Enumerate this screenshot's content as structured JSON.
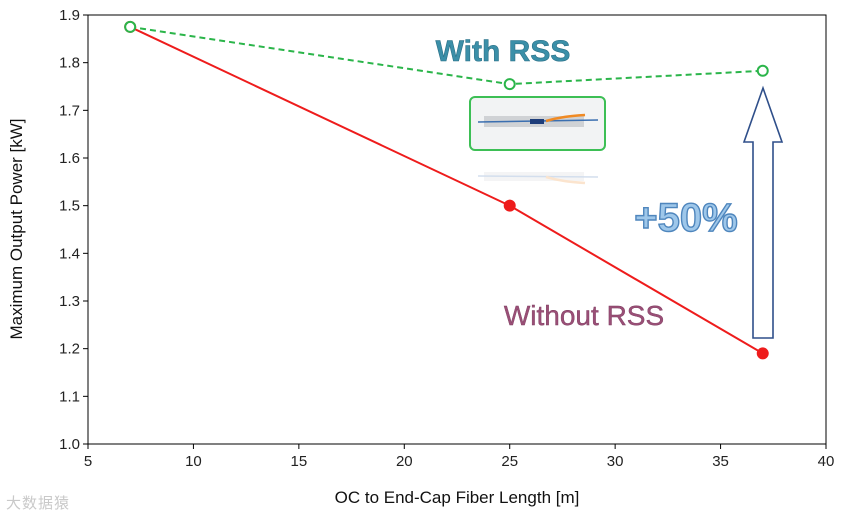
{
  "chart_data": {
    "type": "line",
    "title": "",
    "xlabel": "OC to End-Cap Fiber Length [m]",
    "ylabel": "Maximum Output Power [kW]",
    "xlim": [
      5,
      40
    ],
    "ylim": [
      1.0,
      1.9
    ],
    "xticks": [
      5,
      10,
      15,
      20,
      25,
      30,
      35,
      40
    ],
    "yticks": [
      1.0,
      1.1,
      1.2,
      1.3,
      1.4,
      1.5,
      1.6,
      1.7,
      1.8,
      1.9
    ],
    "series": [
      {
        "name": "Without RSS",
        "x": [
          7,
          25,
          37
        ],
        "y": [
          1.875,
          1.5,
          1.19
        ],
        "color": "#ee1c1c",
        "style": "solid",
        "marker": "filled-circle"
      },
      {
        "name": "With RSS",
        "x": [
          7,
          25,
          37
        ],
        "y": [
          1.875,
          1.755,
          1.783
        ],
        "color": "#2bb54a",
        "style": "dashed",
        "marker": "open-circle"
      }
    ],
    "annotations": {
      "with_label": "With RSS",
      "without_label": "Without RSS",
      "gain_label": "+50%"
    }
  },
  "watermark": "大数据猿"
}
